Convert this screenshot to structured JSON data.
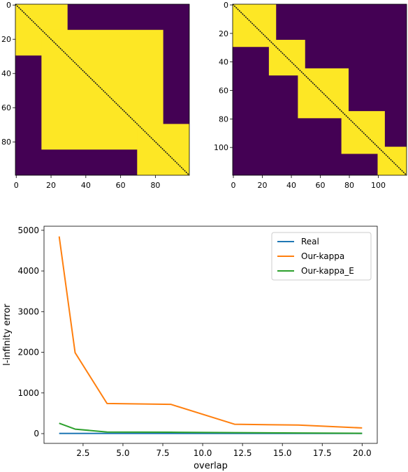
{
  "chart_data": [
    {
      "type": "heatmap",
      "title": "",
      "xlabel": "",
      "ylabel": "",
      "size": 100,
      "xlim": [
        0,
        100
      ],
      "ylim": [
        100,
        0
      ],
      "xticks": [
        "0",
        "20",
        "40",
        "60",
        "80"
      ],
      "yticks": [
        "0",
        "20",
        "40",
        "60",
        "80"
      ],
      "colors": {
        "low": "#440154",
        "high": "#fde725",
        "diagonal": "#1a1a1a"
      },
      "blocks": [
        [
          0,
          30
        ],
        [
          15,
          85
        ],
        [
          70,
          100
        ]
      ],
      "diagonal": "dark"
    },
    {
      "type": "heatmap",
      "title": "",
      "xlabel": "",
      "ylabel": "",
      "size": 120,
      "xlim": [
        0,
        120
      ],
      "ylim": [
        120,
        0
      ],
      "xticks": [
        "0",
        "20",
        "40",
        "60",
        "80",
        "100"
      ],
      "yticks": [
        "0",
        "20",
        "40",
        "60",
        "80",
        "100"
      ],
      "colors": {
        "low": "#440154",
        "high": "#fde725",
        "diagonal": "#1a1a1a"
      },
      "blocks": [
        [
          0,
          30
        ],
        [
          25,
          50
        ],
        [
          45,
          80
        ],
        [
          75,
          105
        ],
        [
          100,
          120
        ]
      ],
      "diagonal": "dark"
    },
    {
      "type": "line",
      "title": "",
      "xlabel": "overlap",
      "ylabel": "l-infinity error",
      "xlim": [
        0.05,
        20.95
      ],
      "ylim": [
        -240,
        5100
      ],
      "xticks": [
        "2.5",
        "5.0",
        "7.5",
        "10.0",
        "12.5",
        "15.0",
        "17.5",
        "20.0"
      ],
      "yticks": [
        "0",
        "1000",
        "2000",
        "3000",
        "4000",
        "5000"
      ],
      "grid": false,
      "legend": "top-right",
      "series": [
        {
          "name": "Real",
          "color": "#1f77b4",
          "x": [
            1,
            2,
            4,
            8,
            12,
            16,
            20
          ],
          "y": [
            5,
            5,
            5,
            5,
            5,
            5,
            5
          ]
        },
        {
          "name": "Our-kappa",
          "color": "#ff7f0e",
          "x": [
            1,
            2,
            4,
            8,
            12,
            16,
            20
          ],
          "y": [
            4850,
            1990,
            740,
            720,
            230,
            210,
            140
          ]
        },
        {
          "name": "Our-kappa_E",
          "color": "#2ca02c",
          "x": [
            1,
            2,
            4,
            8,
            12,
            16,
            20
          ],
          "y": [
            255,
            110,
            40,
            35,
            25,
            15,
            8
          ]
        }
      ]
    }
  ]
}
